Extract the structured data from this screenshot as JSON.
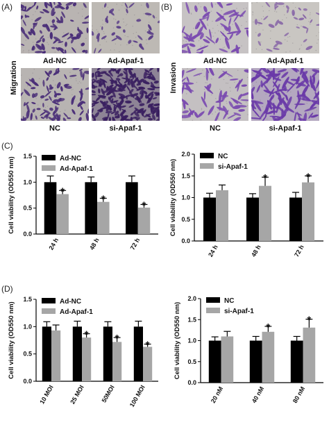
{
  "panel_labels": {
    "a": "(A)",
    "b": "(B)",
    "c": "(C)",
    "d": "(D)"
  },
  "panel_a": {
    "side_label": "Migration",
    "images": [
      {
        "caption": "Ad-NC",
        "density": "medium",
        "colors": {
          "bg": "#b9b4b2",
          "cell": "#4a2e78"
        }
      },
      {
        "caption": "Ad-Apaf-1",
        "density": "low",
        "colors": {
          "bg": "#bdb9b4",
          "cell": "#5a3e88"
        }
      },
      {
        "caption": "NC",
        "density": "medium",
        "colors": {
          "bg": "#b8b4b2",
          "cell": "#4a2e78"
        }
      },
      {
        "caption": "si-Apaf-1",
        "density": "high",
        "colors": {
          "bg": "#8e8496",
          "cell": "#3a2060"
        }
      }
    ]
  },
  "panel_b": {
    "side_label": "Invasion",
    "images": [
      {
        "caption": "Ad-NC",
        "density": "medium-large",
        "colors": {
          "bg": "#c7c3c4",
          "cell": "#7a4ab0"
        }
      },
      {
        "caption": "Ad-Apaf-1",
        "density": "low",
        "colors": {
          "bg": "#c9c6c2",
          "cell": "#8a6aa8"
        }
      },
      {
        "caption": "NC",
        "density": "medium-large",
        "colors": {
          "bg": "#c4c0c2",
          "cell": "#7a4ab0"
        }
      },
      {
        "caption": "si-Apaf-1",
        "density": "high-large",
        "colors": {
          "bg": "#b4a8c0",
          "cell": "#6a3aa8"
        }
      }
    ]
  },
  "chart_data": [
    {
      "type": "bar",
      "panel": "C",
      "position": "left",
      "categories": [
        "24 h",
        "48 h",
        "72 h"
      ],
      "series": [
        {
          "name": "Ad-NC",
          "values": [
            1.0,
            1.0,
            1.0
          ],
          "errors": [
            0.12,
            0.1,
            0.12
          ],
          "color": "#000000"
        },
        {
          "name": "Ad-Apaf-1",
          "values": [
            0.77,
            0.62,
            0.51
          ],
          "errors": [
            0.07,
            0.07,
            0.06
          ],
          "color": "#a6a6a6"
        }
      ],
      "significance": [
        0,
        0,
        0,
        0,
        0,
        0,
        0,
        0,
        0,
        0
      ],
      "sig_marks": [
        {
          "category": 0,
          "series": 1,
          "text": "*"
        },
        {
          "category": 1,
          "series": 1,
          "text": "*"
        },
        {
          "category": 2,
          "series": 1,
          "text": "*"
        }
      ],
      "ylabel": "Cell viability (OD550 nm)",
      "ylim": [
        0,
        1.5
      ],
      "yticks": [
        "0.0",
        "0.5",
        "1.0",
        "1.5"
      ],
      "ytick_values": [
        0,
        0.5,
        1.0,
        1.5
      ],
      "legend_placement": "top-left"
    },
    {
      "type": "bar",
      "panel": "C",
      "position": "right",
      "categories": [
        "24 h",
        "48 h",
        "72 h"
      ],
      "series": [
        {
          "name": "NC",
          "values": [
            1.0,
            1.0,
            1.0
          ],
          "errors": [
            0.1,
            0.09,
            0.12
          ],
          "color": "#000000"
        },
        {
          "name": "si-Apaf-1",
          "values": [
            1.17,
            1.27,
            1.35
          ],
          "errors": [
            0.12,
            0.2,
            0.15
          ],
          "color": "#a6a6a6"
        }
      ],
      "sig_marks": [
        {
          "category": 1,
          "series": 1,
          "text": "*"
        },
        {
          "category": 2,
          "series": 1,
          "text": "*"
        }
      ],
      "ylabel": "Cell viability (OD550 nm)",
      "ylim": [
        0,
        2.0
      ],
      "yticks": [
        "0.0",
        "0.5",
        "1.0",
        "1.5",
        "2.0"
      ],
      "ytick_values": [
        0,
        0.5,
        1.0,
        1.5,
        2.0
      ],
      "legend_placement": "top-left"
    },
    {
      "type": "bar",
      "panel": "D",
      "position": "left",
      "categories": [
        "10 MOI",
        "25 MOI",
        "50MOI",
        "100 MOI"
      ],
      "series": [
        {
          "name": "Ad-NC",
          "values": [
            1.0,
            1.0,
            1.0,
            1.0
          ],
          "errors": [
            0.09,
            0.1,
            0.09,
            0.1
          ],
          "color": "#000000"
        },
        {
          "name": "Ad-Apaf-1",
          "values": [
            0.93,
            0.8,
            0.72,
            0.63
          ],
          "errors": [
            0.1,
            0.07,
            0.08,
            0.05
          ],
          "color": "#a6a6a6"
        }
      ],
      "sig_marks": [
        {
          "category": 1,
          "series": 1,
          "text": "*"
        },
        {
          "category": 2,
          "series": 1,
          "text": "*"
        },
        {
          "category": 3,
          "series": 1,
          "text": "*"
        }
      ],
      "ylabel": "Cell viability (OD550 nm)",
      "ylim": [
        0,
        1.5
      ],
      "yticks": [
        "0.0",
        "0.5",
        "1.0",
        "1.5"
      ],
      "ytick_values": [
        0,
        0.5,
        1.0,
        1.5
      ],
      "legend_placement": "top-left"
    },
    {
      "type": "bar",
      "panel": "D",
      "position": "right",
      "categories": [
        "20 nM",
        "40 nM",
        "80 nM"
      ],
      "series": [
        {
          "name": "NC",
          "values": [
            1.0,
            1.0,
            1.0
          ],
          "errors": [
            0.09,
            0.1,
            0.1
          ],
          "color": "#000000"
        },
        {
          "name": "si-Apaf-1",
          "values": [
            1.1,
            1.21,
            1.31
          ],
          "errors": [
            0.12,
            0.13,
            0.2
          ],
          "color": "#a6a6a6"
        }
      ],
      "sig_marks": [
        {
          "category": 1,
          "series": 1,
          "text": "*"
        },
        {
          "category": 2,
          "series": 1,
          "text": "*"
        }
      ],
      "ylabel": "Cell viability (OD550 nm)",
      "ylim": [
        0,
        2.0
      ],
      "yticks": [
        "0.0",
        "0.5",
        "1.0",
        "1.5",
        "2.0"
      ],
      "ytick_values": [
        0,
        0.5,
        1.0,
        1.5,
        2.0
      ],
      "legend_placement": "top-left"
    }
  ]
}
